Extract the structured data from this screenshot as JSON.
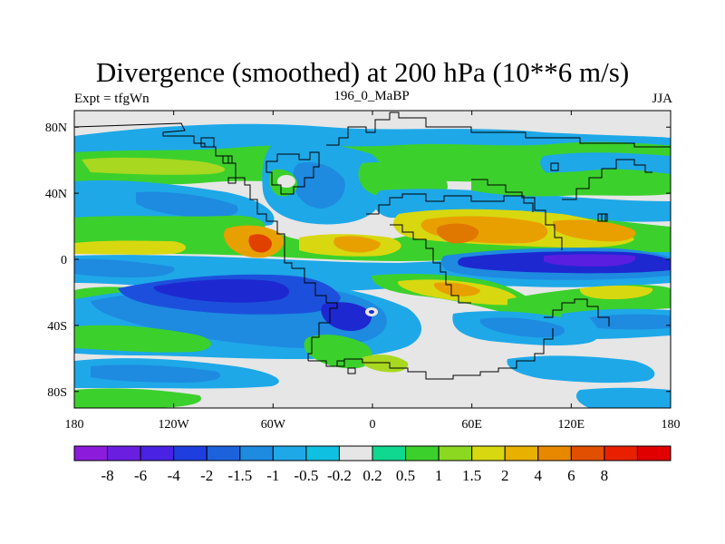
{
  "header": {
    "title": "Divergence (smoothed) at 200 hPa (10**6 m/s)",
    "left": "Expt = tfgWn",
    "center": "196_0_MaBP",
    "right": "JJA"
  },
  "map": {
    "xticks": [
      {
        "lon": -180,
        "label": "180"
      },
      {
        "lon": -120,
        "label": "120W"
      },
      {
        "lon": -60,
        "label": "60W"
      },
      {
        "lon": 0,
        "label": "0"
      },
      {
        "lon": 60,
        "label": "60E"
      },
      {
        "lon": 120,
        "label": "120E"
      },
      {
        "lon": 180,
        "label": "180"
      }
    ],
    "yticks": [
      {
        "lat": 80,
        "label": "80N"
      },
      {
        "lat": 40,
        "label": "40N"
      },
      {
        "lat": 0,
        "label": "0"
      },
      {
        "lat": -40,
        "label": "40S"
      },
      {
        "lat": -80,
        "label": "80S"
      }
    ]
  },
  "colorbar": {
    "colors": [
      "#8c1cdc",
      "#6a1ee0",
      "#4a22e4",
      "#1e3ee0",
      "#1c62dc",
      "#1e8ae0",
      "#1ea8e8",
      "#10c0e0",
      "#e6e6e6",
      "#10d890",
      "#3cd02c",
      "#8cd820",
      "#d8d810",
      "#e8b000",
      "#e88800",
      "#e05000",
      "#e82000",
      "#e00000"
    ],
    "labels": [
      "-8",
      "-6",
      "-4",
      "-2",
      "-1.5",
      "-1",
      "-0.5",
      "-0.2",
      "0.2",
      "0.5",
      "1",
      "1.5",
      "2",
      "4",
      "6",
      "8"
    ]
  },
  "fields": {
    "green": "#3cd02c",
    "yellowgreen": "#a8d820",
    "yellow": "#d8d810",
    "orange": "#e8a000",
    "darkorange": "#e07800",
    "red": "#e04000",
    "teal": "#10d890",
    "cyan": "#10c0e0",
    "lightblue": "#1ea8e8",
    "blue": "#1e8ae0",
    "deepblue": "#1c50dc",
    "navy": "#1e28d0",
    "purple": "#5a1ee0",
    "background": "#e6e6e6"
  }
}
